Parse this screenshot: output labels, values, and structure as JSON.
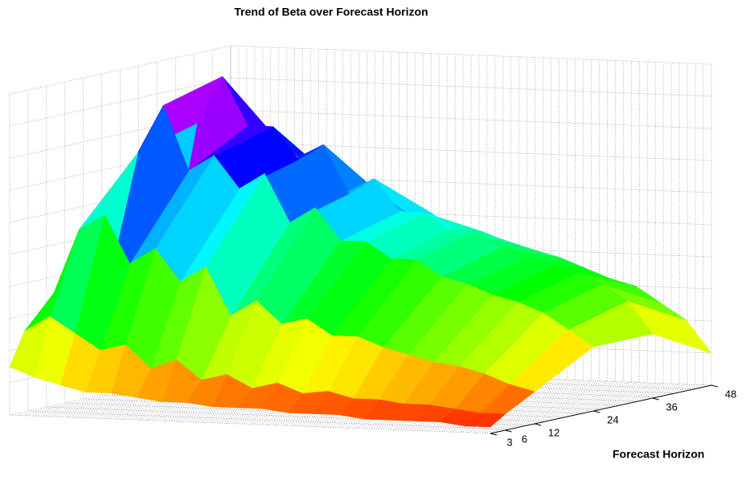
{
  "chart_data": {
    "type": "surface",
    "title": "Trend of Beta over Forecast Horizon",
    "ylabel": "Forecast Horizon",
    "y": [
      3,
      6,
      12,
      24,
      36,
      48
    ],
    "ylim": [
      3,
      48
    ],
    "yticks": [
      3,
      6,
      12,
      24,
      36,
      48
    ],
    "zlim": [
      0,
      1
    ],
    "colormap": "hsv",
    "z": [
      [
        0.15,
        0.12,
        0.1,
        0.08,
        0.08,
        0.07,
        0.06,
        0.06,
        0.05,
        0.05,
        0.05,
        0.04,
        0.04,
        0.04,
        0.03,
        0.03,
        0.03,
        0.03,
        0.02,
        0.02
      ],
      [
        0.25,
        0.3,
        0.25,
        0.2,
        0.22,
        0.15,
        0.18,
        0.12,
        0.14,
        0.1,
        0.12,
        0.09,
        0.1,
        0.08,
        0.08,
        0.07,
        0.07,
        0.06,
        0.05,
        0.05
      ],
      [
        0.35,
        0.55,
        0.6,
        0.45,
        0.5,
        0.4,
        0.45,
        0.3,
        0.35,
        0.28,
        0.3,
        0.25,
        0.25,
        0.22,
        0.2,
        0.18,
        0.17,
        0.15,
        0.12,
        0.1
      ],
      [
        0.4,
        0.75,
        0.9,
        0.7,
        0.75,
        0.65,
        0.7,
        0.55,
        0.6,
        0.5,
        0.5,
        0.45,
        0.45,
        0.4,
        0.38,
        0.35,
        0.33,
        0.3,
        0.25,
        0.2
      ],
      [
        0.38,
        0.8,
        0.95,
        0.8,
        0.8,
        0.7,
        0.75,
        0.6,
        0.65,
        0.55,
        0.55,
        0.5,
        0.5,
        0.45,
        0.42,
        0.4,
        0.38,
        0.35,
        0.3,
        0.2
      ],
      [
        0.3,
        0.6,
        0.7,
        0.65,
        0.6,
        0.55,
        0.55,
        0.5,
        0.5,
        0.45,
        0.45,
        0.42,
        0.4,
        0.38,
        0.35,
        0.32,
        0.3,
        0.25,
        0.2,
        0.1
      ]
    ]
  }
}
